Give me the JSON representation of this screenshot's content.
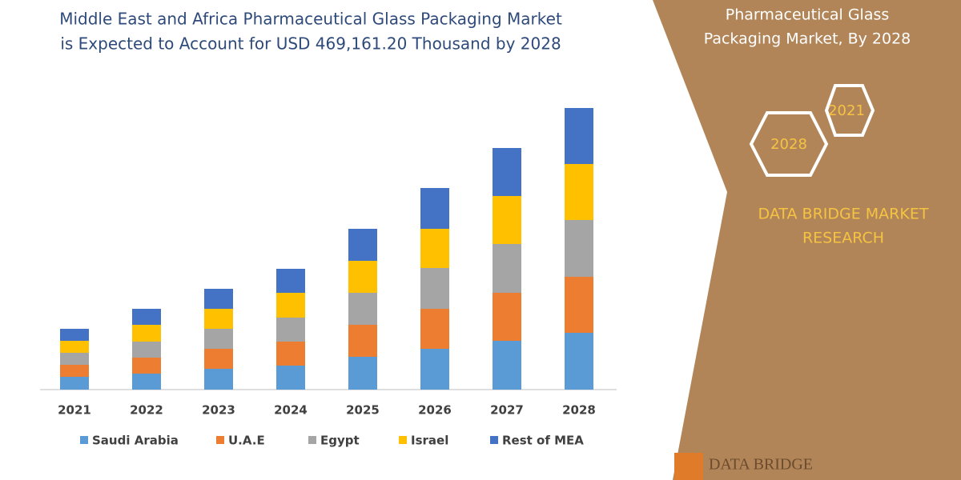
{
  "chart_data": {
    "type": "stacked_bar",
    "title": [
      "Middle East and Africa Pharmaceutical Glass Packaging Market",
      "is Expected to Account for USD 469,161.20 Thousand by 2028"
    ],
    "categories": [
      "2021",
      "2022",
      "2023",
      "2024",
      "2025",
      "2026",
      "2027",
      "2028"
    ],
    "series": [
      {
        "name": "Saudi Arabia",
        "color": "#5b9bd5",
        "values": [
          16,
          20,
          26,
          30,
          41,
          51,
          61,
          71
        ]
      },
      {
        "name": "U.A.E",
        "color": "#ed7d31",
        "values": [
          15,
          20,
          25,
          30,
          40,
          50,
          60,
          70
        ]
      },
      {
        "name": "Egypt",
        "color": "#a5a5a5",
        "values": [
          15,
          20,
          25,
          30,
          40,
          51,
          61,
          71
        ]
      },
      {
        "name": "Israel",
        "color": "#ffc000",
        "values": [
          15,
          21,
          25,
          31,
          40,
          49,
          60,
          70
        ]
      },
      {
        "name": "Rest of MEA",
        "color": "#4472c4",
        "values": [
          15,
          20,
          25,
          30,
          40,
          51,
          60,
          70
        ]
      }
    ],
    "ylim": [
      0,
      360
    ],
    "grid": false,
    "legend": "bottom"
  },
  "panel": {
    "title": [
      "Pharmaceutical Glass",
      "Packaging Market, By 2028"
    ],
    "hexagons": [
      "2021",
      "2028"
    ],
    "brand": [
      "DATA BRIDGE MARKET",
      "RESEARCH"
    ],
    "logo": "DATA BRIDGE"
  }
}
